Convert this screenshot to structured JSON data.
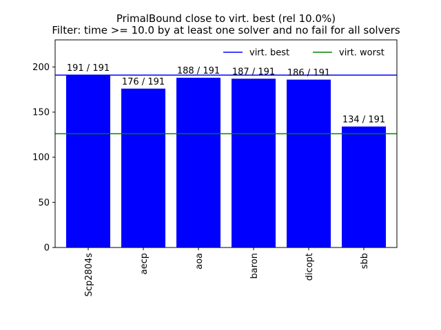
{
  "chart_data": {
    "type": "bar",
    "title_lines": [
      "PrimalBound close to virt. best (rel 10.0%)",
      "Filter: time >= 10.0 by at least one solver and no fail for all solvers"
    ],
    "categories": [
      "Scp2804s",
      "aecp",
      "aoa",
      "baron",
      "dicopt",
      "sbb"
    ],
    "values": [
      191,
      176,
      188,
      187,
      186,
      134
    ],
    "bar_labels": [
      "191 / 191",
      "176 / 191",
      "188 / 191",
      "187 / 191",
      "186 / 191",
      "134 / 191"
    ],
    "ylim": [
      0,
      230
    ],
    "yticks": [
      0,
      50,
      100,
      150,
      200
    ],
    "reference_lines": [
      {
        "name": "virt. best",
        "value": 191,
        "color": "#0000ff"
      },
      {
        "name": "virt. worst",
        "value": 126,
        "color": "#008000"
      }
    ],
    "bar_color": "#0000ff",
    "legend_position": "top-right",
    "grid": false
  }
}
